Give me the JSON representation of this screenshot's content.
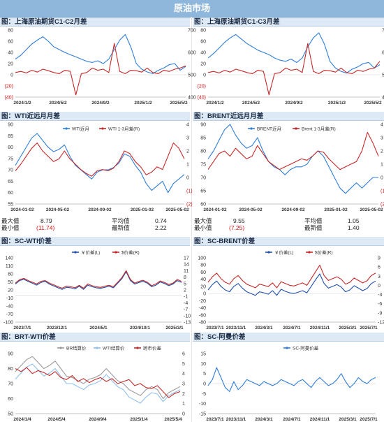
{
  "banner_title": "原油市场",
  "colors": {
    "blue": "#2f7ed8",
    "red": "#c62828",
    "gray": "#9a9a9a",
    "lightblue": "#8ec0ee",
    "navy": "#1f4fa8"
  },
  "panels": [
    {
      "title": "图：上海原油期货C1-C2月差"
    },
    {
      "title": "图：上海原油期货C1-C3月差"
    },
    {
      "title": "图：WTI近远月月差"
    },
    {
      "title": "图：BRENT近远月月差"
    },
    {
      "title": "图：SC-WTI价差"
    },
    {
      "title": "图：SC-BRENT价差"
    },
    {
      "title": "图：BRT-WTI价差"
    },
    {
      "title": "图：SC-阿曼价差"
    }
  ],
  "stats": [
    {
      "max_label": "最大值",
      "max_value": "8.79",
      "avg_label": "平均值",
      "avg_value": "0.74",
      "min_label": "最小值",
      "min_value": "(11.74)",
      "latest_label": "最新值",
      "latest_value": "2.22"
    },
    {
      "max_label": "最大值",
      "max_value": "9.55",
      "avg_label": "平均值",
      "avg_value": "1.05",
      "min_label": "最小值",
      "min_value": "(7.25)",
      "latest_label": "最新值",
      "latest_value": "1.40"
    }
  ],
  "chart_data": [
    {
      "type": "line",
      "title": "图：上海原油期货C1-C2月差",
      "x_ticks": [
        "2024/1/2",
        "2024/5/2",
        "2024/9/2",
        "2025/1/2",
        "2025/5/2"
      ],
      "left_ticks": [
        "80",
        "60",
        "40",
        "20",
        "0",
        "(20)",
        "(40)"
      ],
      "right_ticks": [
        "700",
        "600",
        "500",
        "400"
      ],
      "ylim_left": [
        -40,
        80
      ],
      "ylim_right": [
        400,
        700
      ],
      "series": [
        {
          "axis": "left",
          "color": "blue",
          "values": [
            28,
            35,
            45,
            55,
            62,
            68,
            60,
            50,
            45,
            40,
            36,
            32,
            28,
            24,
            22,
            25,
            20,
            28,
            45,
            62,
            72,
            50,
            20,
            10,
            5,
            2,
            8,
            12,
            18,
            20,
            8,
            15
          ]
        },
        {
          "axis": "right",
          "color": "red",
          "values": [
            510,
            515,
            508,
            520,
            512,
            525,
            518,
            510,
            505,
            520,
            515,
            410,
            505,
            510,
            530,
            520,
            525,
            510,
            640,
            515,
            505,
            520,
            518,
            512,
            530,
            510,
            505,
            520,
            515,
            525,
            530,
            540
          ]
        }
      ]
    },
    {
      "type": "line",
      "title": "图：上海原油期货C1-C3月差",
      "x_ticks": [
        "2024/1/2",
        "2024/5/2",
        "2024/9/2",
        "2025/1/2",
        "2025/5/2"
      ],
      "left_ticks": [
        "80",
        "60",
        "40",
        "20",
        "0",
        "(20)",
        "(40)"
      ],
      "right_ticks": [
        "700",
        "600",
        "500",
        "400"
      ],
      "ylim_left": [
        -40,
        80
      ],
      "ylim_right": [
        400,
        700
      ],
      "series": [
        {
          "axis": "left",
          "color": "blue",
          "values": [
            30,
            38,
            48,
            58,
            66,
            72,
            64,
            56,
            50,
            44,
            40,
            36,
            30,
            26,
            24,
            28,
            22,
            30,
            50,
            66,
            75,
            55,
            24,
            12,
            6,
            3,
            10,
            14,
            20,
            22,
            12,
            18
          ]
        },
        {
          "axis": "right",
          "color": "red",
          "values": [
            510,
            515,
            508,
            520,
            512,
            525,
            518,
            510,
            505,
            520,
            515,
            410,
            505,
            510,
            530,
            520,
            525,
            510,
            640,
            515,
            505,
            520,
            518,
            512,
            530,
            510,
            505,
            520,
            515,
            525,
            530,
            560
          ]
        }
      ]
    },
    {
      "type": "line",
      "title": "图：WTI近远月月差",
      "x_ticks": [
        "2024-01-02",
        "2024-05-02",
        "2024-09-02",
        "2025-01-02",
        "2025-05-02"
      ],
      "left_ticks": [
        "90",
        "85",
        "80",
        "75",
        "70",
        "65",
        "60",
        "55"
      ],
      "right_ticks": [
        "4",
        "3",
        "2",
        "1",
        "0",
        "(1)",
        "(2)"
      ],
      "ylim_left": [
        55,
        90
      ],
      "ylim_right": [
        -2,
        4
      ],
      "legend": [
        "WTI近月",
        "WTI 1-3月差(R)"
      ],
      "series": [
        {
          "name": "WTI近月",
          "axis": "left",
          "color": "blue",
          "values": [
            72,
            76,
            80,
            84,
            86,
            83,
            80,
            78,
            79,
            81,
            76,
            72,
            70,
            68,
            66,
            69,
            70,
            70,
            71,
            73,
            77,
            76,
            72,
            69,
            64,
            61,
            63,
            65,
            60,
            64,
            66,
            68
          ]
        },
        {
          "name": "WTI 1-3月差(R)",
          "axis": "right",
          "color": "red",
          "values": [
            0.5,
            1.0,
            1.6,
            2.2,
            2.6,
            2.0,
            1.6,
            1.2,
            1.4,
            2.0,
            1.4,
            1.0,
            0.6,
            0.3,
            0.1,
            0.5,
            0.6,
            0.5,
            0.7,
            1.2,
            2.0,
            1.8,
            1.2,
            0.8,
            0.2,
            0.4,
            0.8,
            0.6,
            1.6,
            2.6,
            2.2,
            1.4
          ]
        }
      ]
    },
    {
      "type": "line",
      "title": "图：BRENT近远月月差",
      "x_ticks": [
        "2024-01-02",
        "2024-05-02",
        "2024-09-02",
        "2025-01-02",
        "2025-05-02"
      ],
      "left_ticks": [
        "90",
        "85",
        "80",
        "75",
        "70",
        "65",
        "60"
      ],
      "right_ticks": [
        "4",
        "3",
        "2",
        "1",
        "0",
        "(1)",
        "(2)"
      ],
      "ylim_left": [
        60,
        90
      ],
      "ylim_right": [
        -2,
        4
      ],
      "legend": [
        "BRENT近月",
        "Brent 1-3月差(R)"
      ],
      "series": [
        {
          "name": "BRENT近月",
          "axis": "left",
          "color": "blue",
          "values": [
            77,
            80,
            84,
            88,
            90,
            86,
            83,
            81,
            82,
            85,
            80,
            76,
            74,
            73,
            71,
            73,
            74,
            74,
            75,
            78,
            80,
            78,
            74,
            70,
            66,
            64,
            66,
            68,
            66,
            68,
            70,
            70
          ]
        },
        {
          "name": "Brent 1-3月差(R)",
          "axis": "right",
          "color": "red",
          "values": [
            0.6,
            1.2,
            1.8,
            2.0,
            1.6,
            2.2,
            1.8,
            1.4,
            1.6,
            2.4,
            1.8,
            1.2,
            0.9,
            0.6,
            0.8,
            1.0,
            1.2,
            1.4,
            1.3,
            1.6,
            2.0,
            1.9,
            1.4,
            1.0,
            0.6,
            0.8,
            1.0,
            1.2,
            2.0,
            3.4,
            2.6,
            1.6
          ]
        }
      ]
    },
    {
      "type": "line",
      "title": "图：SC-WTI价差",
      "x_ticks": [
        "2023/7/1",
        "2023/12/1",
        "2024/5/1",
        "2024/10/1",
        "2025/3/1"
      ],
      "left_ticks": [
        "140",
        "110",
        "80",
        "50",
        "20",
        "-10",
        "-40",
        "-70",
        "-100"
      ],
      "right_ticks": [
        "17",
        "14",
        "11",
        "8",
        "5",
        "2",
        "-1",
        "-4",
        "-7",
        "-10",
        "-13"
      ],
      "ylim_left": [
        -100,
        140
      ],
      "ylim_right": [
        -13,
        17
      ],
      "legend": [
        "￥价差(L)",
        "$价差(R)"
      ],
      "series": [
        {
          "name": "￥价差(L)",
          "axis": "left",
          "color": "navy",
          "values": [
            42,
            55,
            60,
            52,
            45,
            38,
            48,
            52,
            42,
            35,
            28,
            22,
            30,
            28,
            24,
            34,
            22,
            38,
            32,
            28,
            26,
            30,
            34,
            28,
            45,
            62,
            88,
            55,
            42,
            48,
            52,
            45,
            32,
            38,
            50,
            44,
            36,
            42,
            55,
            48
          ]
        },
        {
          "name": "$价差(R)",
          "axis": "right",
          "color": "red",
          "values": [
            5.2,
            6.8,
            7.4,
            6.4,
            5.6,
            4.8,
            6.0,
            6.4,
            5.2,
            4.4,
            3.5,
            2.8,
            3.8,
            3.5,
            3.0,
            4.2,
            2.8,
            4.8,
            4.0,
            3.5,
            3.2,
            3.8,
            4.2,
            3.5,
            5.6,
            7.8,
            11.0,
            6.9,
            5.2,
            6.0,
            6.5,
            5.6,
            4.0,
            4.8,
            6.2,
            5.5,
            4.5,
            5.2,
            6.9,
            6.0
          ]
        }
      ]
    },
    {
      "type": "line",
      "title": "图：SC-BRENT价差",
      "x_ticks": [
        "2023/7/1",
        "2023/11/1",
        "2024/3/1",
        "2024/7/1",
        "2024/11/1",
        "2025/3/1",
        "2025/7/1"
      ],
      "left_ticks": [
        "100",
        "80",
        "60",
        "40",
        "20",
        "0",
        "-20",
        "-40",
        "-60",
        "-80"
      ],
      "right_ticks": [
        "9",
        "6",
        "3",
        "0",
        "-3",
        "-6",
        "-9",
        "-12"
      ],
      "ylim_left": [
        -80,
        100
      ],
      "ylim_right": [
        -12,
        9
      ],
      "legend": [
        "￥价差(L)",
        "$价差(R)"
      ],
      "series": [
        {
          "name": "￥价差(L)",
          "axis": "left",
          "color": "navy",
          "values": [
            10,
            25,
            35,
            20,
            10,
            5,
            20,
            28,
            15,
            5,
            0,
            -5,
            5,
            2,
            -2,
            8,
            -5,
            12,
            6,
            2,
            0,
            4,
            8,
            2,
            20,
            38,
            55,
            28,
            15,
            20,
            25,
            18,
            5,
            10,
            22,
            15,
            8,
            14,
            28,
            35
          ]
        },
        {
          "name": "$价差(R)",
          "axis": "right",
          "color": "red",
          "values": [
            1.0,
            2.8,
            4.0,
            2.2,
            1.0,
            0.4,
            2.2,
            3.2,
            1.6,
            0.4,
            -0.2,
            -0.8,
            0.4,
            0.0,
            -0.4,
            0.8,
            -0.8,
            1.2,
            0.6,
            0.0,
            -0.2,
            0.3,
            0.8,
            0.0,
            2.2,
            4.4,
            6.6,
            3.2,
            1.6,
            2.2,
            2.8,
            2.0,
            0.4,
            1.0,
            2.4,
            1.6,
            0.8,
            1.5,
            3.2,
            4.0
          ]
        }
      ]
    },
    {
      "type": "line",
      "title": "图：BRT-WTI价差",
      "x_ticks": [
        "2024/1/4",
        "2024/5/4",
        "2024/9/4",
        "2025/1/4",
        "2025/5/4"
      ],
      "left_ticks": [
        "90",
        "80",
        "70",
        "60",
        "50"
      ],
      "right_ticks": [
        "6",
        "5",
        "4",
        "3",
        "2",
        "1",
        "0"
      ],
      "ylim_left": [
        50,
        90
      ],
      "ylim_right": [
        0,
        6
      ],
      "legend": [
        "BR结算价",
        "WTI结算价",
        "跨市价差"
      ],
      "series": [
        {
          "name": "BR结算价",
          "axis": "left",
          "color": "gray",
          "values": [
            78,
            82,
            86,
            88,
            84,
            80,
            82,
            85,
            80,
            75,
            74,
            72,
            70,
            73,
            74,
            76,
            80,
            76,
            72,
            70,
            66,
            64,
            62,
            66,
            68,
            66,
            60,
            64,
            66,
            68
          ]
        },
        {
          "name": "WTI结算价",
          "axis": "left",
          "color": "lightblue",
          "values": [
            73,
            77,
            81,
            83,
            79,
            75,
            77,
            80,
            75,
            70,
            70,
            68,
            66,
            69,
            70,
            72,
            76,
            72,
            68,
            66,
            61,
            59,
            57,
            61,
            64,
            63,
            58,
            62,
            64,
            66
          ]
        },
        {
          "name": "跨市价差",
          "axis": "right",
          "color": "red",
          "values": [
            4.5,
            4.2,
            4.6,
            4.0,
            4.3,
            4.1,
            3.8,
            4.2,
            3.6,
            3.4,
            3.8,
            3.2,
            3.5,
            3.1,
            3.4,
            3.6,
            3.2,
            3.5,
            3.0,
            3.2,
            3.4,
            2.8,
            3.0,
            2.6,
            2.5,
            2.8,
            2.2,
            1.6,
            2.0,
            2.2
          ]
        }
      ]
    },
    {
      "type": "line",
      "title": "图：SC-阿曼价差",
      "x_ticks": [
        "2023/7/1",
        "2023/11/1",
        "2024/3/1",
        "2024/7/1",
        "2024/11/1",
        "2025/3/1",
        "2025/7/1"
      ],
      "left_ticks": [
        "15",
        "10",
        "5",
        "0",
        "-5",
        "-10",
        "-15"
      ],
      "ylim_left": [
        -15,
        15
      ],
      "legend": [
        "SC-阿曼价差"
      ],
      "series": [
        {
          "name": "SC-阿曼价差",
          "axis": "left",
          "color": "blue",
          "values": [
            -1,
            2,
            8,
            3,
            -2,
            -4,
            1,
            -3,
            -1,
            2,
            1,
            0,
            -1,
            1,
            0,
            -1,
            0,
            2,
            1,
            0,
            -1,
            1,
            2,
            0,
            -2,
            1,
            3,
            1,
            -1,
            0,
            2,
            5,
            1,
            -2,
            0,
            3,
            1,
            0,
            2,
            3
          ]
        }
      ]
    }
  ]
}
